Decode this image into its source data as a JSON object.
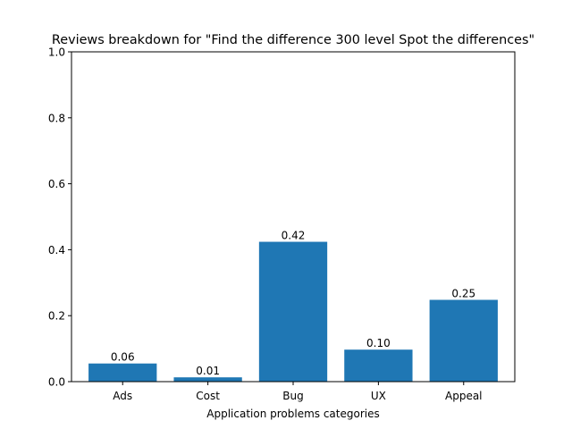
{
  "chart_data": {
    "type": "bar",
    "title": "Reviews breakdown for \"Find the difference 300 level Spot the differences\"",
    "xlabel": "Application problems categories",
    "ylabel": "",
    "categories": [
      "Ads",
      "Cost",
      "Bug",
      "UX",
      "Appeal"
    ],
    "values": [
      0.055,
      0.013,
      0.424,
      0.097,
      0.248
    ],
    "value_labels": [
      "0.06",
      "0.01",
      "0.42",
      "0.10",
      "0.25"
    ],
    "ylim": [
      0,
      1
    ],
    "yticks": [
      0.0,
      0.2,
      0.4,
      0.6,
      0.8,
      1.0
    ],
    "ytick_labels": [
      "0.0",
      "0.2",
      "0.4",
      "0.6",
      "0.8",
      "1.0"
    ],
    "grid": false,
    "bar_color": "#1f77b4"
  }
}
